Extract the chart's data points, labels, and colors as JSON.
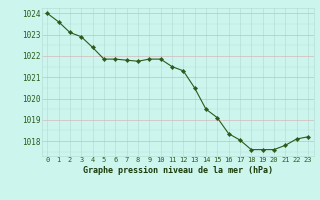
{
  "hours": [
    0,
    1,
    2,
    3,
    4,
    5,
    6,
    7,
    8,
    9,
    10,
    11,
    12,
    13,
    14,
    15,
    16,
    17,
    18,
    19,
    20,
    21,
    22,
    23
  ],
  "pressure": [
    1024.0,
    1023.6,
    1023.1,
    1022.9,
    1022.4,
    1021.85,
    1021.85,
    1021.8,
    1021.75,
    1021.85,
    1021.85,
    1021.5,
    1021.3,
    1020.5,
    1019.5,
    1019.1,
    1018.35,
    1018.05,
    1017.6,
    1017.6,
    1017.6,
    1017.8,
    1018.1,
    1018.2
  ],
  "line_color": "#2d5a1b",
  "marker_color": "#2d5a1b",
  "bg_color": "#ccf5ee",
  "grid_color_v": "#b8ddd8",
  "grid_color_h": "#d4b8b8",
  "xlabel": "Graphe pression niveau de la mer (hPa)",
  "xlabel_color": "#1a3a0a",
  "tick_color": "#2d5a1b",
  "ylim": [
    1017.3,
    1024.25
  ],
  "yticks": [
    1018,
    1019,
    1020,
    1021,
    1022,
    1023,
    1024
  ],
  "xticks": [
    0,
    1,
    2,
    3,
    4,
    5,
    6,
    7,
    8,
    9,
    10,
    11,
    12,
    13,
    14,
    15,
    16,
    17,
    18,
    19,
    20,
    21,
    22,
    23
  ],
  "xtick_labels": [
    "0",
    "1",
    "2",
    "3",
    "4",
    "5",
    "6",
    "7",
    "8",
    "9",
    "10",
    "11",
    "12",
    "13",
    "14",
    "15",
    "16",
    "17",
    "18",
    "19",
    "20",
    "21",
    "22",
    "23"
  ]
}
